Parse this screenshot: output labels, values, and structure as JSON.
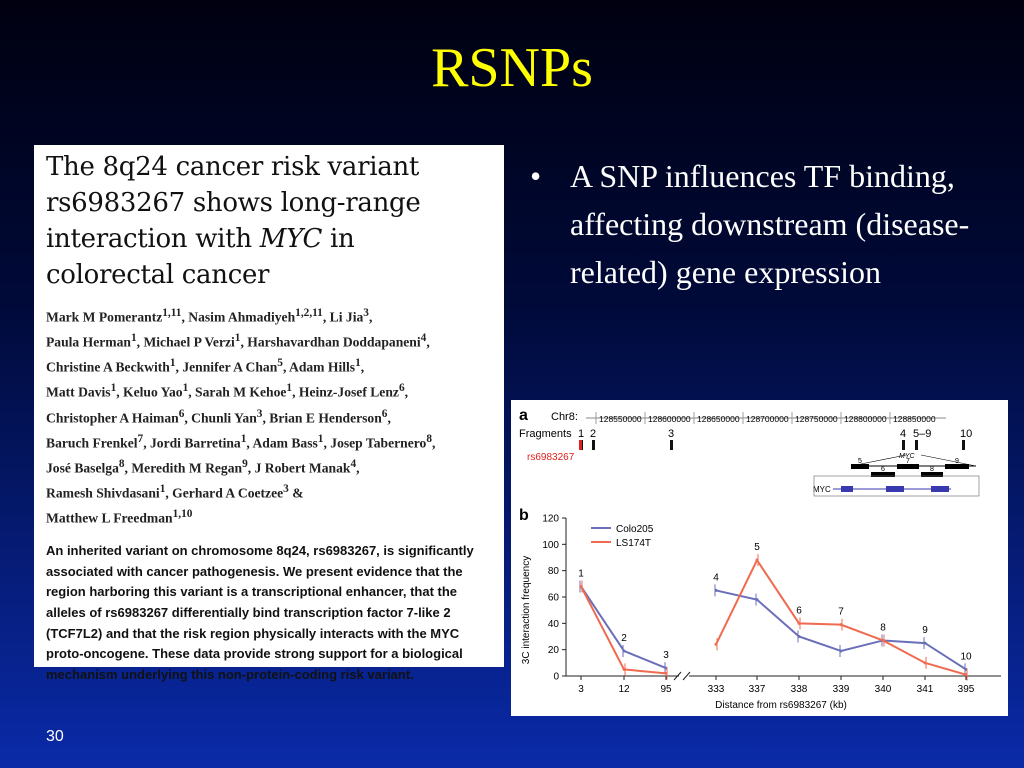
{
  "slide": {
    "title": "RSNPs",
    "number": "30",
    "bullets": [
      "A SNP influences TF binding, affecting downstream (disease-related) gene expression"
    ]
  },
  "paper": {
    "title_lines": [
      "The 8q24 cancer risk variant",
      "rs6983267 shows long-range",
      "interaction with ",
      "MYC",
      " in",
      "colorectal cancer"
    ],
    "authors": [
      "Mark M Pomerantz",
      "1,11",
      ", Nasim Ahmadiyeh",
      "1,2,11",
      ", Li Jia",
      "3",
      ",",
      "Paula Herman",
      "1",
      ", Michael P Verzi",
      "1",
      ", Harshavardhan Doddapaneni",
      "4",
      ",",
      "Christine A Beckwith",
      "1",
      ", Jennifer A Chan",
      "5",
      ", Adam Hills",
      "1",
      ",",
      "Matt Davis",
      "1",
      ", Keluo Yao",
      "1",
      ", Sarah M Kehoe",
      "1",
      ", Heinz-Josef Lenz",
      "6",
      ",",
      "Christopher A Haiman",
      "6",
      ", Chunli Yan",
      "3",
      ", Brian E Henderson",
      "6",
      ",",
      "Baruch Frenkel",
      "7",
      ", Jordi Barretina",
      "1",
      ", Adam Bass",
      "1",
      ", Josep Tabernero",
      "8",
      ",",
      "José Baselga",
      "8",
      ", Meredith M Regan",
      "9",
      ", J Robert Manak",
      "4",
      ",",
      "Ramesh Shivdasani",
      "1",
      ", Gerhard A Coetzee",
      "3",
      " &",
      "Matthew L Freedman",
      "1,10"
    ],
    "abstract": "An inherited variant on chromosome 8q24, rs6983267, is significantly associated with cancer pathogenesis. We present evidence that the region harboring this variant is a transcriptional enhancer, that the alleles of rs6983267 differentially bind transcription factor 7-like 2 (TCF7L2) and that the risk region physically interacts with the MYC proto-oncogene. These data provide strong support for a biological mechanism underlying this non-protein-coding risk variant."
  },
  "figure": {
    "panel_a": {
      "label": "a",
      "chr_label": "Chr8:",
      "positions": [
        "128550000",
        "128600000",
        "128650000",
        "128700000",
        "128750000",
        "128800000",
        "128850000"
      ],
      "fragments_label": "Fragments",
      "fragment_ids": [
        "1",
        "2",
        "3",
        "4",
        "5–9",
        "10"
      ],
      "snp_label": "rs6983267",
      "gene_label": "MYC",
      "gene_label_track": "MYC",
      "inset_ids": [
        "5",
        "6",
        "7",
        "8",
        "9"
      ]
    },
    "panel_b": {
      "label": "b"
    }
  },
  "chart_data": {
    "type": "line",
    "ylabel": "3C interaction frequency",
    "xlabel": "Distance from rs6983267 (kb)",
    "categories": [
      "3",
      "12",
      "95",
      "333",
      "337",
      "338",
      "339",
      "340",
      "341",
      "395"
    ],
    "ylim": [
      0,
      120
    ],
    "yticks": [
      0,
      20,
      40,
      60,
      80,
      100,
      120
    ],
    "fragment_labels": [
      "1",
      "2",
      "3",
      "4",
      "5",
      "6",
      "7",
      "8",
      "9",
      "10"
    ],
    "series": [
      {
        "name": "Colo205",
        "color": "#6a6fb8",
        "values": [
          68,
          19,
          6,
          65,
          58,
          30,
          19,
          27,
          25,
          5
        ]
      },
      {
        "name": "LS174T",
        "color": "#f06a50",
        "values": [
          68,
          5,
          2,
          24,
          88,
          40,
          39,
          27,
          10,
          1
        ]
      }
    ],
    "legend_position": "top-left"
  }
}
